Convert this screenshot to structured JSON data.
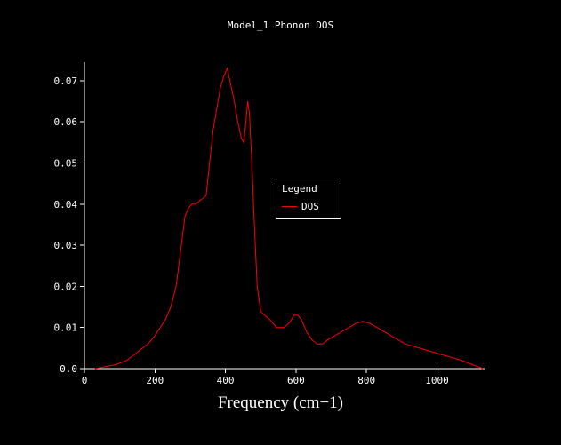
{
  "title": "Model_1 Phonon DOS",
  "legend": {
    "title": "Legend",
    "entries": [
      {
        "label": "DOS",
        "color": "#ff0000"
      }
    ]
  },
  "chart_data": {
    "type": "line",
    "title": "Model_1 Phonon DOS",
    "xlabel": "Frequency (cm−1)",
    "ylabel": "",
    "xlim": [
      0,
      1135
    ],
    "ylim": [
      0,
      0.0745
    ],
    "grid": false,
    "legend_position": "center",
    "background_color": "#000000",
    "axis_color": "#ffffff",
    "x_ticks": {
      "values": [
        0,
        200,
        400,
        600,
        800,
        1000
      ],
      "labels": [
        "0",
        "200",
        "400",
        "600",
        "800",
        "1000"
      ]
    },
    "y_ticks": {
      "values": [
        0.0,
        0.01,
        0.02,
        0.03,
        0.04,
        0.05,
        0.06,
        0.07
      ],
      "labels": [
        "0.0",
        "0.01",
        "0.02",
        "0.03",
        "0.04",
        "0.05",
        "0.06",
        "0.07"
      ]
    },
    "series": [
      {
        "name": "DOS",
        "color": "#ff0000",
        "x": [
          30,
          60,
          90,
          120,
          150,
          180,
          200,
          215,
          230,
          245,
          260,
          275,
          285,
          295,
          305,
          315,
          330,
          345,
          355,
          365,
          375,
          385,
          395,
          405,
          415,
          425,
          435,
          445,
          452,
          458,
          463,
          468,
          475,
          482,
          490,
          500,
          510,
          525,
          545,
          565,
          580,
          595,
          605,
          615,
          630,
          645,
          660,
          675,
          690,
          710,
          730,
          750,
          770,
          790,
          810,
          830,
          850,
          880,
          910,
          950,
          990,
          1030,
          1070,
          1100,
          1130
        ],
        "y": [
          0.0,
          0.0005,
          0.001,
          0.002,
          0.004,
          0.006,
          0.008,
          0.01,
          0.012,
          0.015,
          0.02,
          0.03,
          0.037,
          0.039,
          0.04,
          0.04,
          0.041,
          0.042,
          0.05,
          0.058,
          0.063,
          0.068,
          0.071,
          0.073,
          0.069,
          0.065,
          0.06,
          0.056,
          0.055,
          0.06,
          0.065,
          0.062,
          0.05,
          0.035,
          0.02,
          0.014,
          0.013,
          0.012,
          0.01,
          0.01,
          0.011,
          0.013,
          0.013,
          0.012,
          0.009,
          0.007,
          0.006,
          0.006,
          0.007,
          0.008,
          0.009,
          0.01,
          0.011,
          0.0115,
          0.011,
          0.01,
          0.009,
          0.0075,
          0.006,
          0.005,
          0.004,
          0.003,
          0.002,
          0.001,
          0.0
        ]
      }
    ]
  }
}
